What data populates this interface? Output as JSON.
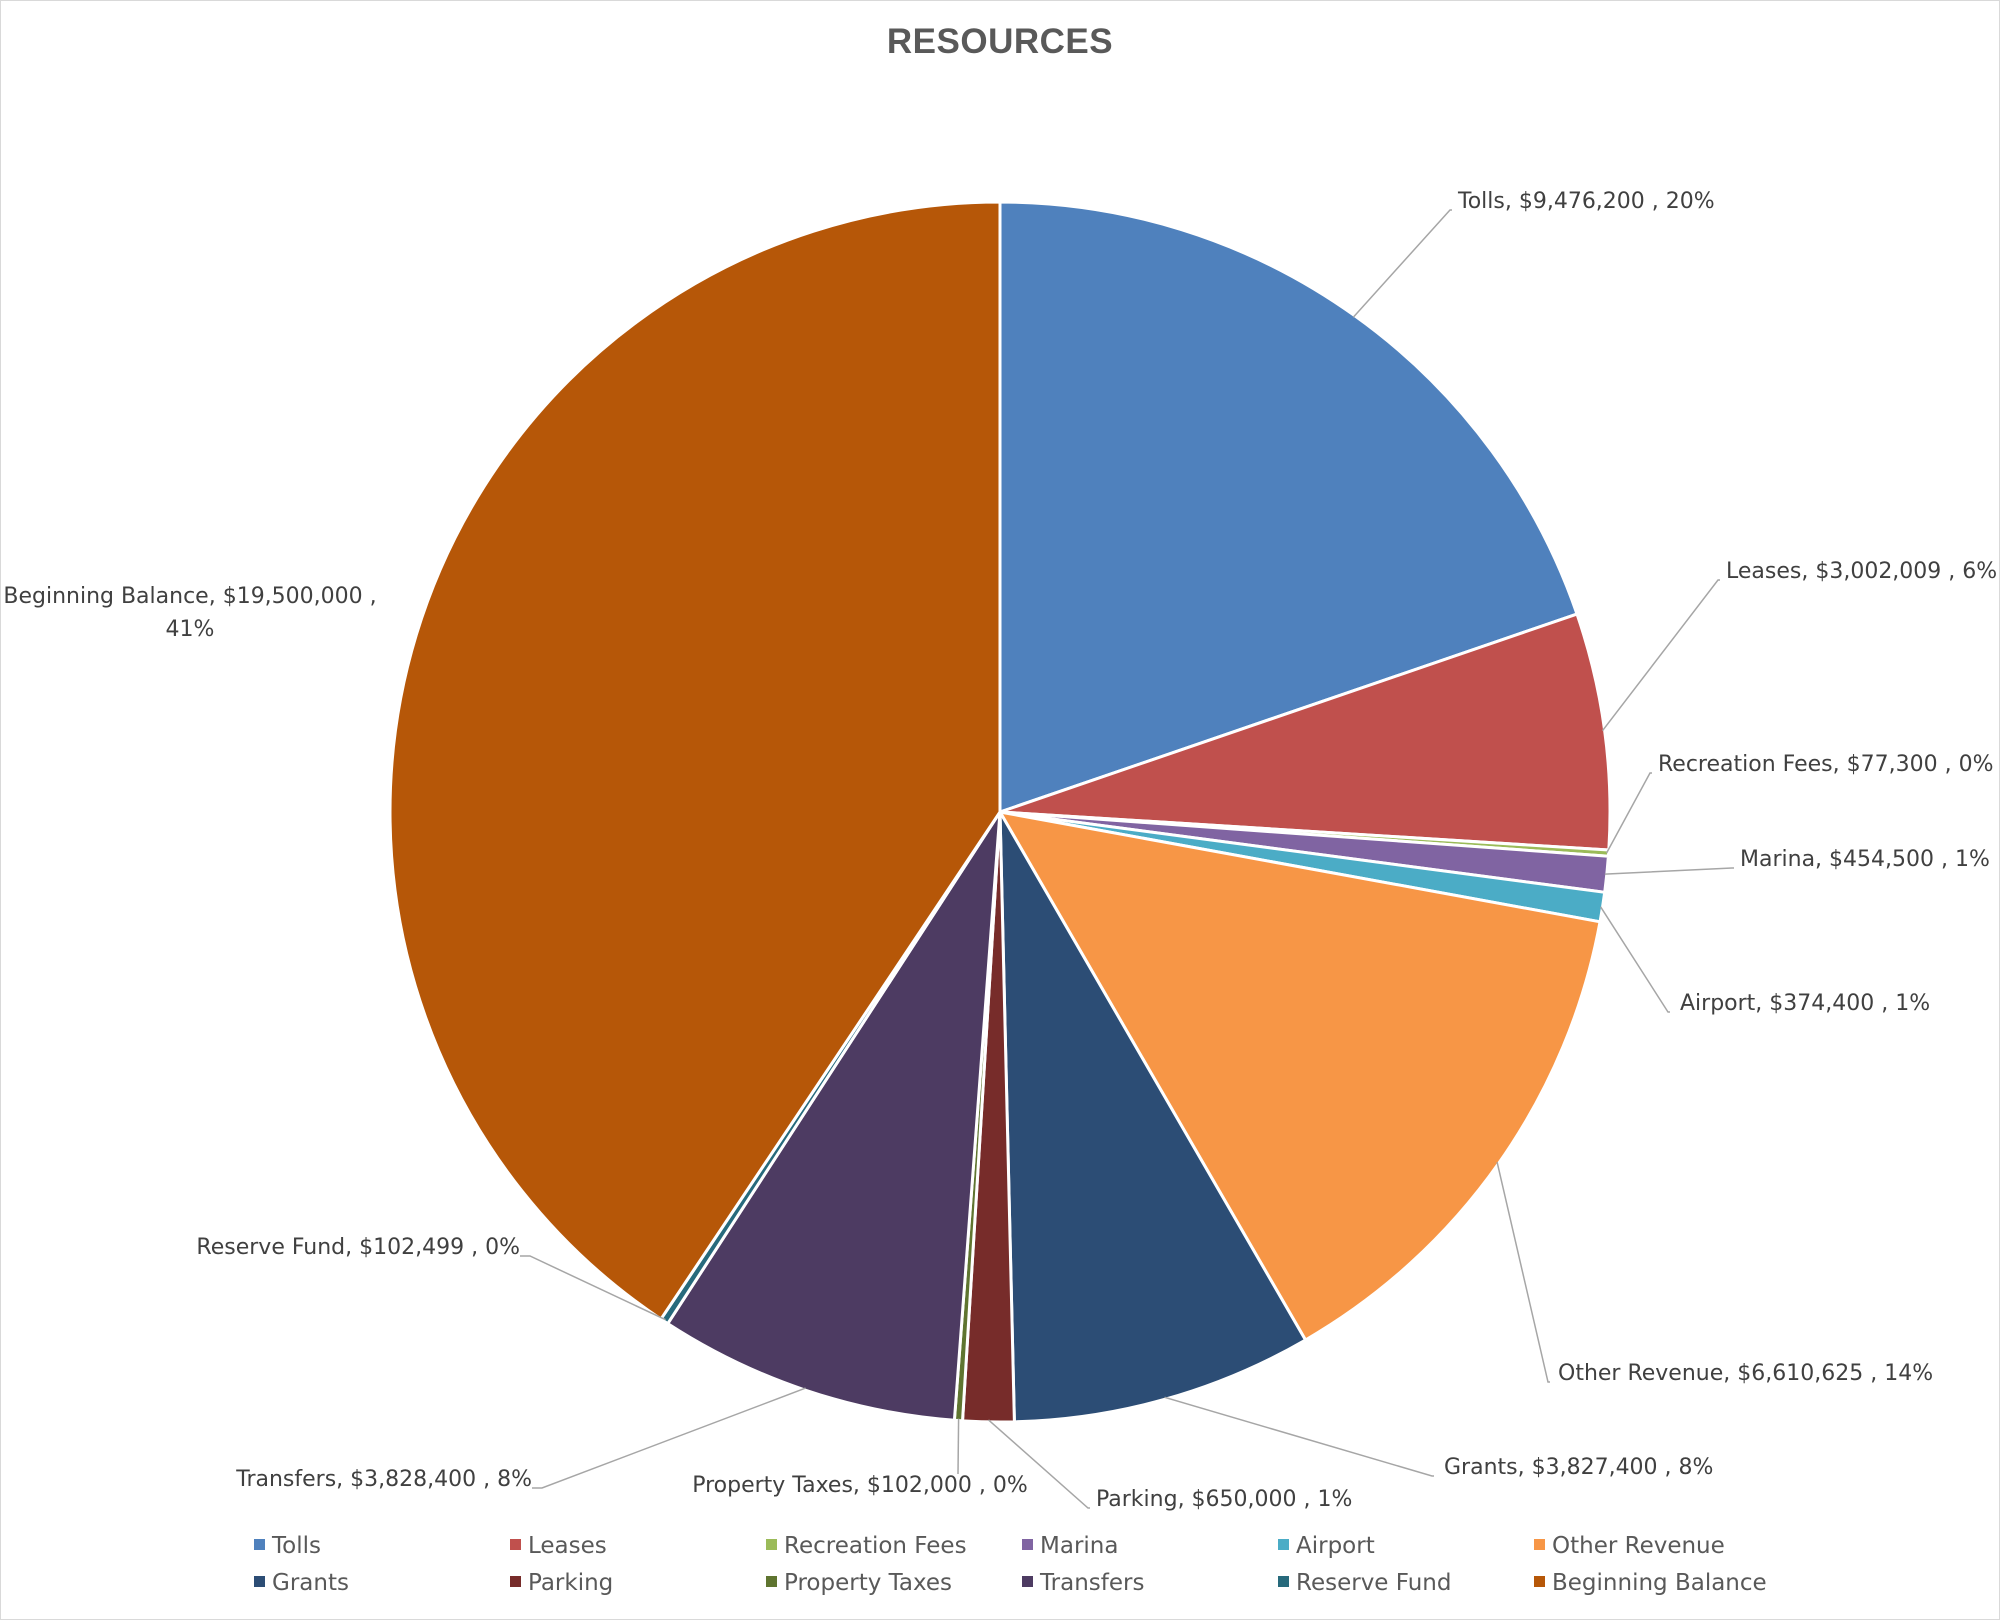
{
  "chart_data": {
    "type": "pie",
    "title": "RESOURCES",
    "legend_position": "bottom",
    "slices": [
      {
        "name": "Tolls",
        "value": 9476200,
        "value_label": "$9,476,200",
        "percent_label": "20%",
        "color": "#4F81BD"
      },
      {
        "name": "Leases",
        "value": 3002009,
        "value_label": "$3,002,009",
        "percent_label": "6%",
        "color": "#C0504D"
      },
      {
        "name": "Recreation Fees",
        "value": 77300,
        "value_label": "$77,300",
        "percent_label": "0%",
        "color": "#9BBB59"
      },
      {
        "name": "Marina",
        "value": 454500,
        "value_label": "$454,500",
        "percent_label": "1%",
        "color": "#8064A2"
      },
      {
        "name": "Airport",
        "value": 374400,
        "value_label": "$374,400",
        "percent_label": "1%",
        "color": "#4BACC6"
      },
      {
        "name": "Other Revenue",
        "value": 6610625,
        "value_label": "$6,610,625",
        "percent_label": "14%",
        "color": "#F79646"
      },
      {
        "name": "Grants",
        "value": 3827400,
        "value_label": "$3,827,400",
        "percent_label": "8%",
        "color": "#2C4D75"
      },
      {
        "name": "Parking",
        "value": 650000,
        "value_label": "$650,000",
        "percent_label": "1%",
        "color": "#772C2A"
      },
      {
        "name": "Property Taxes",
        "value": 102000,
        "value_label": "$102,000",
        "percent_label": "0%",
        "color": "#5F7530"
      },
      {
        "name": "Transfers",
        "value": 3828400,
        "value_label": "$3,828,400",
        "percent_label": "8%",
        "color": "#4D3B62"
      },
      {
        "name": "Reserve Fund",
        "value": 102499,
        "value_label": "$102,499",
        "percent_label": "0%",
        "color": "#276A7C"
      },
      {
        "name": "Beginning Balance",
        "value": 19500000,
        "value_label": "$19,500,000",
        "percent_label": "41%",
        "color": "#B65708"
      }
    ]
  }
}
